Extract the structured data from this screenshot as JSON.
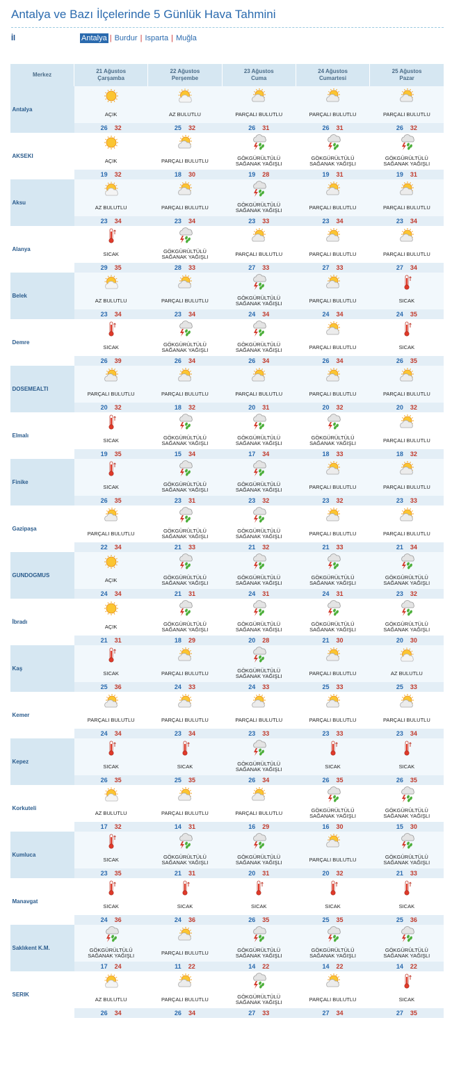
{
  "title": "Antalya ve Bazı İlçelerinde 5 Günlük Hava Tahmini",
  "region_label": "İl",
  "regions": [
    {
      "label": "Antalya",
      "active": true
    },
    {
      "label": "Burdur",
      "active": false
    },
    {
      "label": "Isparta",
      "active": false
    },
    {
      "label": "Muğla",
      "active": false
    }
  ],
  "header": {
    "corner": "Merkez",
    "days": [
      {
        "date": "21 Ağustos",
        "weekday": "Çarşamba"
      },
      {
        "date": "22 Ağustos",
        "weekday": "Perşembe"
      },
      {
        "date": "23 Ağustos",
        "weekday": "Cuma"
      },
      {
        "date": "24 Ağustos",
        "weekday": "Cumartesi"
      },
      {
        "date": "25 Ağustos",
        "weekday": "Pazar"
      }
    ]
  },
  "conditions": {
    "clear": {
      "text": "AÇIK",
      "icon": "sun-icon"
    },
    "few": {
      "text": "AZ BULUTLU",
      "icon": "sun-cloud-icon"
    },
    "partly": {
      "text": "PARÇALI BULUTLU",
      "icon": "partly-cloudy-icon"
    },
    "storm": {
      "text": "GÖKGÜRÜLTÜLÜ SAĞANAK YAĞIŞLI",
      "icon": "thunderstorm-icon"
    },
    "hot": {
      "text": "SICAK",
      "icon": "thermometer-icon"
    }
  },
  "cities": [
    {
      "name": "Antalya",
      "days": [
        {
          "c": "clear",
          "min": "26",
          "max": "32"
        },
        {
          "c": "few",
          "min": "25",
          "max": "32"
        },
        {
          "c": "partly",
          "min": "26",
          "max": "31"
        },
        {
          "c": "partly",
          "min": "26",
          "max": "31"
        },
        {
          "c": "partly",
          "min": "26",
          "max": "32"
        }
      ]
    },
    {
      "name": "AKSEKI",
      "days": [
        {
          "c": "clear",
          "min": "19",
          "max": "32"
        },
        {
          "c": "partly",
          "min": "18",
          "max": "30"
        },
        {
          "c": "storm",
          "min": "19",
          "max": "28"
        },
        {
          "c": "storm",
          "min": "19",
          "max": "31"
        },
        {
          "c": "storm",
          "min": "19",
          "max": "31"
        }
      ]
    },
    {
      "name": "Aksu",
      "days": [
        {
          "c": "few",
          "min": "23",
          "max": "34"
        },
        {
          "c": "partly",
          "min": "23",
          "max": "34"
        },
        {
          "c": "storm",
          "min": "23",
          "max": "33"
        },
        {
          "c": "partly",
          "min": "23",
          "max": "34"
        },
        {
          "c": "partly",
          "min": "23",
          "max": "34"
        }
      ]
    },
    {
      "name": "Alanya",
      "days": [
        {
          "c": "hot",
          "min": "29",
          "max": "35"
        },
        {
          "c": "storm",
          "min": "28",
          "max": "33"
        },
        {
          "c": "partly",
          "min": "27",
          "max": "33"
        },
        {
          "c": "partly",
          "min": "27",
          "max": "33"
        },
        {
          "c": "partly",
          "min": "27",
          "max": "34"
        }
      ]
    },
    {
      "name": "Belek",
      "days": [
        {
          "c": "few",
          "min": "23",
          "max": "34"
        },
        {
          "c": "partly",
          "min": "23",
          "max": "34"
        },
        {
          "c": "storm",
          "min": "24",
          "max": "34"
        },
        {
          "c": "partly",
          "min": "24",
          "max": "34"
        },
        {
          "c": "hot",
          "min": "24",
          "max": "35"
        }
      ]
    },
    {
      "name": "Demre",
      "days": [
        {
          "c": "hot",
          "min": "26",
          "max": "39"
        },
        {
          "c": "storm",
          "min": "26",
          "max": "34"
        },
        {
          "c": "storm",
          "min": "26",
          "max": "34"
        },
        {
          "c": "partly",
          "min": "26",
          "max": "34"
        },
        {
          "c": "hot",
          "min": "26",
          "max": "35"
        }
      ]
    },
    {
      "name": "DOSEMEALTI",
      "days": [
        {
          "c": "partly",
          "min": "20",
          "max": "32"
        },
        {
          "c": "partly",
          "min": "18",
          "max": "32"
        },
        {
          "c": "partly",
          "min": "20",
          "max": "31"
        },
        {
          "c": "partly",
          "min": "20",
          "max": "32"
        },
        {
          "c": "partly",
          "min": "20",
          "max": "32"
        }
      ]
    },
    {
      "name": "Elmalı",
      "days": [
        {
          "c": "hot",
          "min": "19",
          "max": "35"
        },
        {
          "c": "storm",
          "min": "15",
          "max": "34"
        },
        {
          "c": "storm",
          "min": "17",
          "max": "34"
        },
        {
          "c": "storm",
          "min": "18",
          "max": "33"
        },
        {
          "c": "partly",
          "min": "18",
          "max": "32"
        }
      ]
    },
    {
      "name": "Finike",
      "days": [
        {
          "c": "hot",
          "min": "26",
          "max": "35"
        },
        {
          "c": "storm",
          "min": "23",
          "max": "31"
        },
        {
          "c": "storm",
          "min": "23",
          "max": "32"
        },
        {
          "c": "partly",
          "min": "23",
          "max": "32"
        },
        {
          "c": "partly",
          "min": "23",
          "max": "33"
        }
      ]
    },
    {
      "name": "Gazipaşa",
      "days": [
        {
          "c": "partly",
          "min": "22",
          "max": "34"
        },
        {
          "c": "storm",
          "min": "21",
          "max": "33"
        },
        {
          "c": "storm",
          "min": "21",
          "max": "32"
        },
        {
          "c": "partly",
          "min": "21",
          "max": "33"
        },
        {
          "c": "partly",
          "min": "21",
          "max": "34"
        }
      ]
    },
    {
      "name": "GUNDOGMUS",
      "days": [
        {
          "c": "clear",
          "min": "24",
          "max": "34"
        },
        {
          "c": "storm",
          "min": "21",
          "max": "31"
        },
        {
          "c": "storm",
          "min": "24",
          "max": "31"
        },
        {
          "c": "storm",
          "min": "24",
          "max": "31"
        },
        {
          "c": "storm",
          "min": "23",
          "max": "32"
        }
      ]
    },
    {
      "name": "İbradı",
      "days": [
        {
          "c": "clear",
          "min": "21",
          "max": "31"
        },
        {
          "c": "storm",
          "min": "18",
          "max": "29"
        },
        {
          "c": "storm",
          "min": "20",
          "max": "28"
        },
        {
          "c": "storm",
          "min": "21",
          "max": "30"
        },
        {
          "c": "storm",
          "min": "20",
          "max": "30"
        }
      ]
    },
    {
      "name": "Kaş",
      "days": [
        {
          "c": "hot",
          "min": "25",
          "max": "36"
        },
        {
          "c": "partly",
          "min": "24",
          "max": "33"
        },
        {
          "c": "storm",
          "min": "24",
          "max": "33"
        },
        {
          "c": "partly",
          "min": "25",
          "max": "33"
        },
        {
          "c": "few",
          "min": "25",
          "max": "33"
        }
      ]
    },
    {
      "name": "Kemer",
      "days": [
        {
          "c": "partly",
          "min": "24",
          "max": "34"
        },
        {
          "c": "partly",
          "min": "23",
          "max": "34"
        },
        {
          "c": "partly",
          "min": "23",
          "max": "33"
        },
        {
          "c": "partly",
          "min": "23",
          "max": "33"
        },
        {
          "c": "partly",
          "min": "23",
          "max": "34"
        }
      ]
    },
    {
      "name": "Kepez",
      "days": [
        {
          "c": "hot",
          "min": "26",
          "max": "35"
        },
        {
          "c": "hot",
          "min": "25",
          "max": "35"
        },
        {
          "c": "storm",
          "min": "26",
          "max": "34"
        },
        {
          "c": "hot",
          "min": "26",
          "max": "35"
        },
        {
          "c": "hot",
          "min": "26",
          "max": "35"
        }
      ]
    },
    {
      "name": "Korkuteli",
      "days": [
        {
          "c": "few",
          "min": "17",
          "max": "32"
        },
        {
          "c": "partly",
          "min": "14",
          "max": "31"
        },
        {
          "c": "partly",
          "min": "16",
          "max": "29"
        },
        {
          "c": "storm",
          "min": "16",
          "max": "30"
        },
        {
          "c": "storm",
          "min": "15",
          "max": "30"
        }
      ]
    },
    {
      "name": "Kumluca",
      "days": [
        {
          "c": "hot",
          "min": "23",
          "max": "35"
        },
        {
          "c": "storm",
          "min": "21",
          "max": "31"
        },
        {
          "c": "storm",
          "min": "20",
          "max": "31"
        },
        {
          "c": "partly",
          "min": "20",
          "max": "32"
        },
        {
          "c": "storm",
          "min": "21",
          "max": "33"
        }
      ]
    },
    {
      "name": "Manavgat",
      "days": [
        {
          "c": "hot",
          "min": "24",
          "max": "36"
        },
        {
          "c": "hot",
          "min": "24",
          "max": "36"
        },
        {
          "c": "hot",
          "min": "26",
          "max": "35"
        },
        {
          "c": "hot",
          "min": "25",
          "max": "35"
        },
        {
          "c": "hot",
          "min": "25",
          "max": "36"
        }
      ]
    },
    {
      "name": "Saklıkent K.M.",
      "days": [
        {
          "c": "storm",
          "min": "17",
          "max": "24"
        },
        {
          "c": "partly",
          "min": "11",
          "max": "22"
        },
        {
          "c": "storm",
          "min": "14",
          "max": "22"
        },
        {
          "c": "storm",
          "min": "14",
          "max": "22"
        },
        {
          "c": "storm",
          "min": "14",
          "max": "22"
        }
      ]
    },
    {
      "name": "SERIK",
      "days": [
        {
          "c": "few",
          "min": "26",
          "max": "34"
        },
        {
          "c": "partly",
          "min": "26",
          "max": "34"
        },
        {
          "c": "storm",
          "min": "27",
          "max": "33"
        },
        {
          "c": "partly",
          "min": "27",
          "max": "34"
        },
        {
          "c": "hot",
          "min": "27",
          "max": "35"
        }
      ]
    }
  ]
}
